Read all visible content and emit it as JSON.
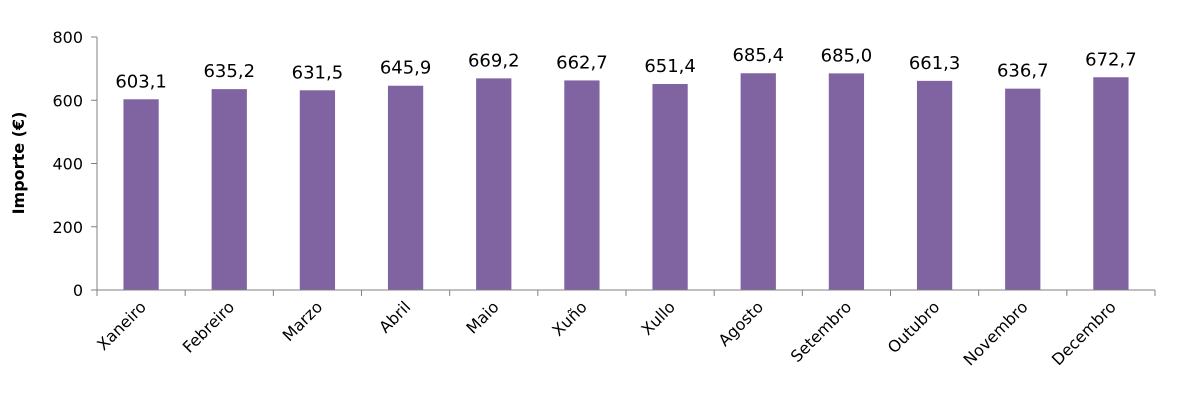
{
  "chart_data": {
    "type": "bar",
    "categories": [
      "Xaneiro",
      "Febreiro",
      "Marzo",
      "Abril",
      "Maio",
      "Xuño",
      "Xullo",
      "Agosto",
      "Setembro",
      "Outubro",
      "Novembro",
      "Decembro"
    ],
    "values": [
      603.1,
      635.2,
      631.5,
      645.9,
      669.2,
      662.7,
      651.4,
      685.4,
      685.0,
      661.3,
      636.7,
      672.7
    ],
    "value_labels": [
      "603,1",
      "635,2",
      "631,5",
      "645,9",
      "669,2",
      "662,7",
      "651,4",
      "685,4",
      "685,0",
      "661,3",
      "636,7",
      "672,7"
    ],
    "ylabel": "Importe (€)",
    "ylim": [
      0,
      800
    ],
    "yticks": [
      0,
      200,
      400,
      600,
      800
    ],
    "grid": false,
    "legend": "none",
    "bar_color": "#8064a2"
  }
}
